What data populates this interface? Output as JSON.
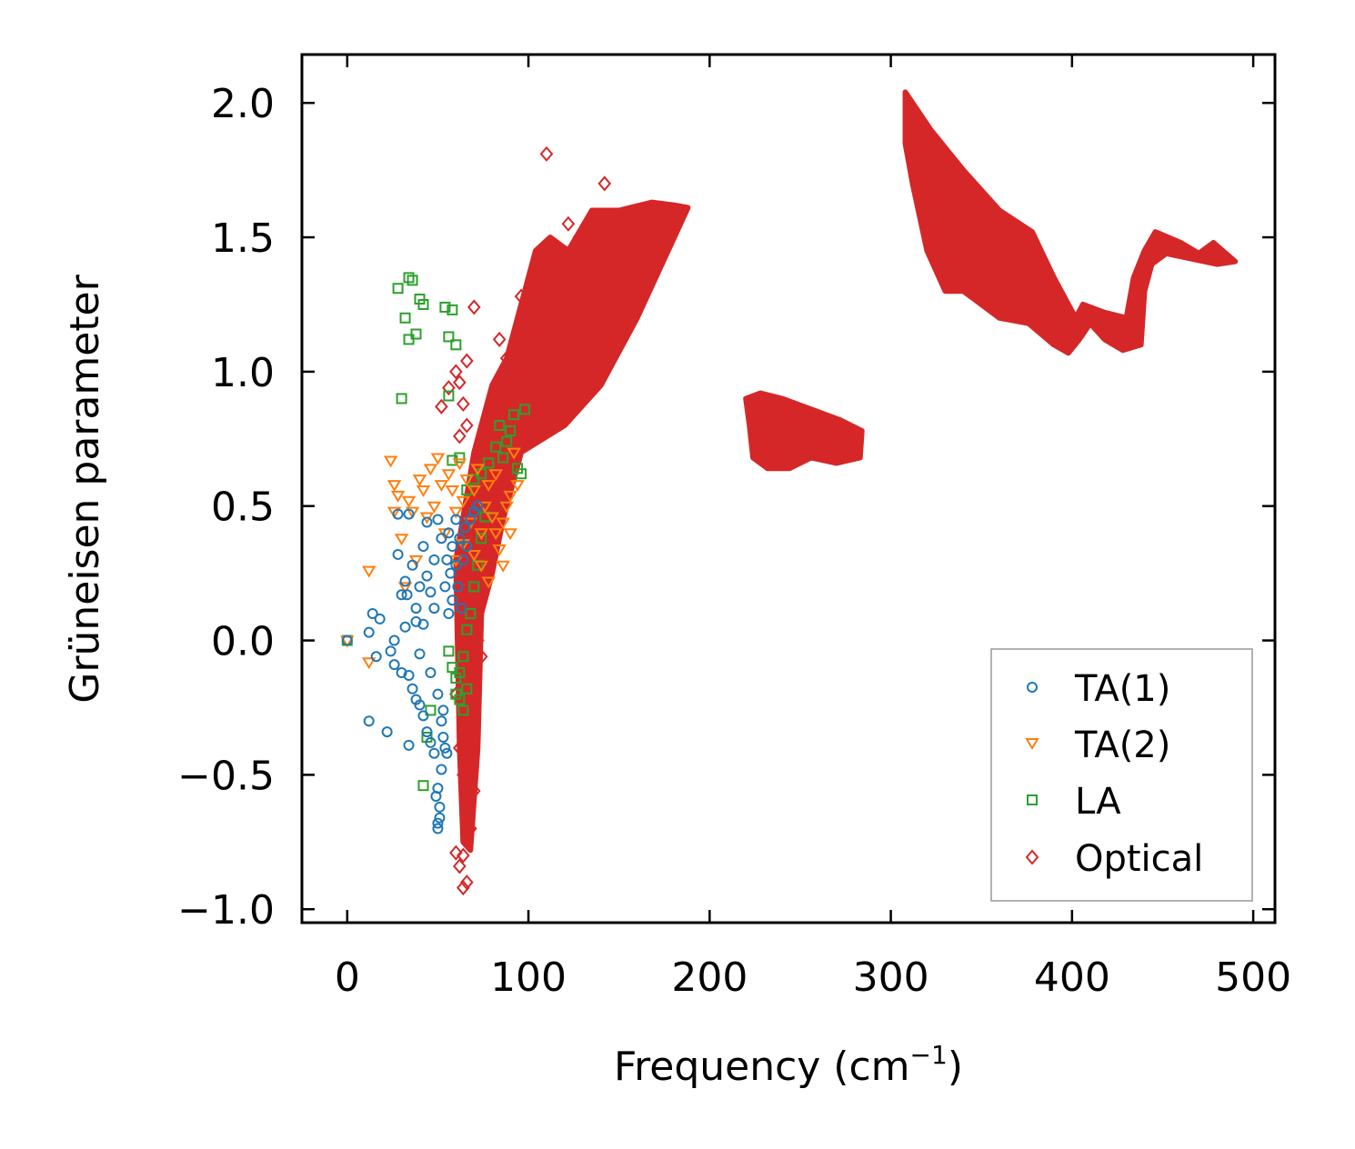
{
  "chart_data": {
    "type": "scatter",
    "title": "",
    "xlabel": "Frequency (cm",
    "xlabel_sup": "−1",
    "xlabel_close": ")",
    "ylabel": "Grüneisen parameter",
    "xlim": [
      -25,
      512
    ],
    "ylim": [
      -1.05,
      2.18
    ],
    "xticks": [
      0,
      100,
      200,
      300,
      400,
      500
    ],
    "yticks": [
      -1.0,
      -0.5,
      0.0,
      0.5,
      1.0,
      1.5,
      2.0
    ],
    "xtick_labels": [
      "0",
      "100",
      "200",
      "300",
      "400",
      "500"
    ],
    "ytick_labels": [
      "−1.0",
      "−0.5",
      "0.0",
      "0.5",
      "1.0",
      "1.5",
      "2.0"
    ],
    "grid": false,
    "legend_position": "bottom-right",
    "series": [
      {
        "name": "TA(1)",
        "marker": "circle",
        "color": "#1f77b4",
        "points": [
          [
            0,
            0.0
          ],
          [
            12,
            0.03
          ],
          [
            14,
            0.1
          ],
          [
            16,
            -0.06
          ],
          [
            18,
            0.08
          ],
          [
            12,
            -0.3
          ],
          [
            22,
            -0.34
          ],
          [
            24,
            -0.04
          ],
          [
            26,
            0.0
          ],
          [
            26,
            -0.09
          ],
          [
            28,
            0.47
          ],
          [
            28,
            0.32
          ],
          [
            30,
            0.17
          ],
          [
            30,
            -0.12
          ],
          [
            32,
            0.05
          ],
          [
            32,
            0.22
          ],
          [
            33,
            0.17
          ],
          [
            34,
            0.47
          ],
          [
            34,
            -0.13
          ],
          [
            34,
            -0.39
          ],
          [
            36,
            0.28
          ],
          [
            36,
            -0.18
          ],
          [
            38,
            0.12
          ],
          [
            38,
            0.07
          ],
          [
            38,
            -0.22
          ],
          [
            40,
            0.2
          ],
          [
            40,
            -0.05
          ],
          [
            40,
            -0.24
          ],
          [
            42,
            0.35
          ],
          [
            42,
            0.06
          ],
          [
            42,
            -0.28
          ],
          [
            44,
            0.44
          ],
          [
            44,
            0.24
          ],
          [
            44,
            -0.34
          ],
          [
            46,
            0.18
          ],
          [
            46,
            -0.12
          ],
          [
            46,
            -0.38
          ],
          [
            48,
            0.3
          ],
          [
            48,
            0.12
          ],
          [
            48,
            -0.42
          ],
          [
            50,
            0.45
          ],
          [
            50,
            -0.2
          ],
          [
            50,
            -0.55
          ],
          [
            50,
            -0.68
          ],
          [
            51,
            -0.62
          ],
          [
            52,
            0.38
          ],
          [
            52,
            -0.3
          ],
          [
            52,
            -0.48
          ],
          [
            53,
            -0.36
          ],
          [
            54,
            0.2
          ],
          [
            54,
            -0.4
          ],
          [
            55,
            0.3
          ],
          [
            56,
            0.1
          ],
          [
            56,
            0.4
          ],
          [
            57,
            0.25
          ],
          [
            58,
            0.35
          ],
          [
            58,
            0.15
          ],
          [
            60,
            0.45
          ],
          [
            60,
            0.28
          ],
          [
            61,
            0.2
          ],
          [
            62,
            0.38
          ],
          [
            63,
            0.12
          ],
          [
            64,
            0.3
          ],
          [
            65,
            0.42
          ],
          [
            66,
            0.35
          ],
          [
            68,
            0.45
          ],
          [
            70,
            0.48
          ],
          [
            72,
            0.5
          ],
          [
            50,
            -0.7
          ],
          [
            51,
            -0.66
          ],
          [
            49,
            -0.58
          ],
          [
            53,
            -0.26
          ],
          [
            55,
            -0.42
          ]
        ]
      },
      {
        "name": "TA(2)",
        "marker": "triangle-down",
        "color": "#ff7f0e",
        "points": [
          [
            0,
            0.0
          ],
          [
            12,
            0.26
          ],
          [
            12,
            -0.08
          ],
          [
            24,
            0.67
          ],
          [
            26,
            0.48
          ],
          [
            26,
            0.58
          ],
          [
            28,
            0.54
          ],
          [
            30,
            0.38
          ],
          [
            32,
            0.2
          ],
          [
            34,
            0.52
          ],
          [
            36,
            0.48
          ],
          [
            38,
            0.3
          ],
          [
            40,
            0.6
          ],
          [
            42,
            0.56
          ],
          [
            44,
            0.46
          ],
          [
            46,
            0.64
          ],
          [
            48,
            0.5
          ],
          [
            50,
            0.68
          ],
          [
            52,
            0.58
          ],
          [
            54,
            0.4
          ],
          [
            56,
            0.62
          ],
          [
            58,
            0.56
          ],
          [
            60,
            0.48
          ],
          [
            62,
            0.66
          ],
          [
            64,
            0.52
          ],
          [
            66,
            0.6
          ],
          [
            68,
            0.44
          ],
          [
            70,
            0.56
          ],
          [
            72,
            0.64
          ],
          [
            74,
            0.4
          ],
          [
            76,
            0.5
          ],
          [
            78,
            0.58
          ],
          [
            80,
            0.46
          ],
          [
            82,
            0.62
          ],
          [
            84,
            0.34
          ],
          [
            86,
            0.28
          ],
          [
            88,
            0.5
          ],
          [
            90,
            0.4
          ],
          [
            92,
            0.7
          ],
          [
            94,
            0.58
          ],
          [
            60,
            0.3
          ],
          [
            64,
            0.36
          ],
          [
            70,
            0.32
          ],
          [
            74,
            0.28
          ],
          [
            78,
            0.22
          ],
          [
            82,
            0.4
          ],
          [
            86,
            0.44
          ],
          [
            90,
            0.54
          ]
        ]
      },
      {
        "name": "LA",
        "marker": "square",
        "color": "#2ca02c",
        "points": [
          [
            0,
            0.0
          ],
          [
            28,
            1.31
          ],
          [
            30,
            0.9
          ],
          [
            32,
            1.2
          ],
          [
            34,
            1.12
          ],
          [
            34,
            1.35
          ],
          [
            36,
            1.34
          ],
          [
            38,
            1.14
          ],
          [
            40,
            1.27
          ],
          [
            42,
            1.25
          ],
          [
            42,
            -0.54
          ],
          [
            44,
            -0.36
          ],
          [
            46,
            -0.26
          ],
          [
            54,
            1.24
          ],
          [
            56,
            1.13
          ],
          [
            56,
            0.91
          ],
          [
            58,
            1.23
          ],
          [
            60,
            1.1
          ],
          [
            58,
            0.67
          ],
          [
            62,
            0.68
          ],
          [
            66,
            0.56
          ],
          [
            70,
            0.6
          ],
          [
            74,
            0.62
          ],
          [
            78,
            0.66
          ],
          [
            82,
            0.72
          ],
          [
            84,
            0.8
          ],
          [
            86,
            0.68
          ],
          [
            88,
            0.74
          ],
          [
            90,
            0.78
          ],
          [
            92,
            0.84
          ],
          [
            94,
            0.64
          ],
          [
            96,
            0.62
          ],
          [
            98,
            0.86
          ],
          [
            60,
            -0.2
          ],
          [
            62,
            -0.12
          ],
          [
            64,
            -0.06
          ],
          [
            66,
            0.04
          ],
          [
            68,
            0.1
          ],
          [
            70,
            0.2
          ],
          [
            72,
            0.28
          ],
          [
            74,
            0.38
          ],
          [
            76,
            0.46
          ],
          [
            56,
            -0.04
          ],
          [
            58,
            -0.1
          ],
          [
            60,
            -0.14
          ],
          [
            62,
            -0.22
          ],
          [
            64,
            -0.26
          ],
          [
            66,
            -0.18
          ]
        ]
      },
      {
        "name": "Optical",
        "marker": "diamond",
        "color": "#d62728",
        "points": [
          [
            110,
            1.81
          ],
          [
            142,
            1.7
          ],
          [
            122,
            1.55
          ],
          [
            128,
            1.5
          ],
          [
            88,
            1.05
          ],
          [
            84,
            1.12
          ],
          [
            96,
            1.28
          ],
          [
            70,
            1.24
          ],
          [
            66,
            1.04
          ],
          [
            64,
            0.88
          ],
          [
            62,
            0.96
          ],
          [
            52,
            0.87
          ],
          [
            56,
            0.94
          ],
          [
            60,
            1.0
          ],
          [
            62,
            0.76
          ],
          [
            66,
            0.8
          ],
          [
            64,
            -0.8
          ],
          [
            66,
            -0.9
          ],
          [
            64,
            -0.92
          ],
          [
            60,
            -0.79
          ],
          [
            62,
            -0.84
          ],
          [
            68,
            -0.7
          ],
          [
            66,
            -0.62
          ],
          [
            64,
            -0.5
          ],
          [
            70,
            -0.56
          ],
          [
            62,
            -0.4
          ],
          [
            68,
            -0.36
          ],
          [
            60,
            -0.2
          ],
          [
            64,
            -0.1
          ],
          [
            70,
            -0.2
          ],
          [
            66,
            0.0
          ],
          [
            68,
            0.1
          ],
          [
            72,
            0.0
          ],
          [
            74,
            0.2
          ],
          [
            76,
            0.3
          ],
          [
            74,
            -0.06
          ]
        ],
        "regions": [
          [
            [
              60,
              0.3
            ],
            [
              62,
              -0.4
            ],
            [
              64,
              -0.75
            ],
            [
              68,
              -0.78
            ],
            [
              72,
              -0.4
            ],
            [
              74,
              0.1
            ],
            [
              80,
              0.25
            ],
            [
              86,
              0.45
            ],
            [
              96,
              0.7
            ],
            [
              120,
              0.8
            ],
            [
              140,
              0.95
            ],
            [
              160,
              1.2
            ],
            [
              188,
              1.61
            ],
            [
              180,
              1.62
            ],
            [
              168,
              1.63
            ],
            [
              150,
              1.6
            ],
            [
              135,
              1.6
            ],
            [
              122,
              1.45
            ],
            [
              112,
              1.5
            ],
            [
              104,
              1.45
            ],
            [
              98,
              1.3
            ],
            [
              88,
              1.05
            ],
            [
              80,
              0.95
            ],
            [
              70,
              0.7
            ]
          ],
          [
            [
              220,
              0.9
            ],
            [
              228,
              0.92
            ],
            [
              240,
              0.9
            ],
            [
              260,
              0.85
            ],
            [
              272,
              0.82
            ],
            [
              284,
              0.78
            ],
            [
              283,
              0.68
            ],
            [
              270,
              0.66
            ],
            [
              256,
              0.68
            ],
            [
              244,
              0.64
            ],
            [
              232,
              0.64
            ],
            [
              224,
              0.68
            ],
            [
              222,
              0.8
            ]
          ],
          [
            [
              308,
              2.04
            ],
            [
              322,
              1.9
            ],
            [
              340,
              1.75
            ],
            [
              360,
              1.6
            ],
            [
              378,
              1.52
            ],
            [
              390,
              1.35
            ],
            [
              402,
              1.2
            ],
            [
              406,
              1.25
            ],
            [
              418,
              1.22
            ],
            [
              430,
              1.2
            ],
            [
              434,
              1.35
            ],
            [
              440,
              1.45
            ],
            [
              446,
              1.52
            ],
            [
              460,
              1.48
            ],
            [
              470,
              1.44
            ],
            [
              478,
              1.48
            ],
            [
              490,
              1.41
            ],
            [
              480,
              1.4
            ],
            [
              466,
              1.42
            ],
            [
              452,
              1.44
            ],
            [
              444,
              1.4
            ],
            [
              440,
              1.3
            ],
            [
              438,
              1.1
            ],
            [
              428,
              1.08
            ],
            [
              418,
              1.12
            ],
            [
              410,
              1.18
            ],
            [
              404,
              1.12
            ],
            [
              398,
              1.07
            ],
            [
              390,
              1.1
            ],
            [
              376,
              1.18
            ],
            [
              360,
              1.2
            ],
            [
              350,
              1.25
            ],
            [
              340,
              1.3
            ],
            [
              330,
              1.3
            ],
            [
              320,
              1.45
            ],
            [
              312,
              1.7
            ],
            [
              308,
              1.85
            ]
          ]
        ]
      }
    ]
  }
}
